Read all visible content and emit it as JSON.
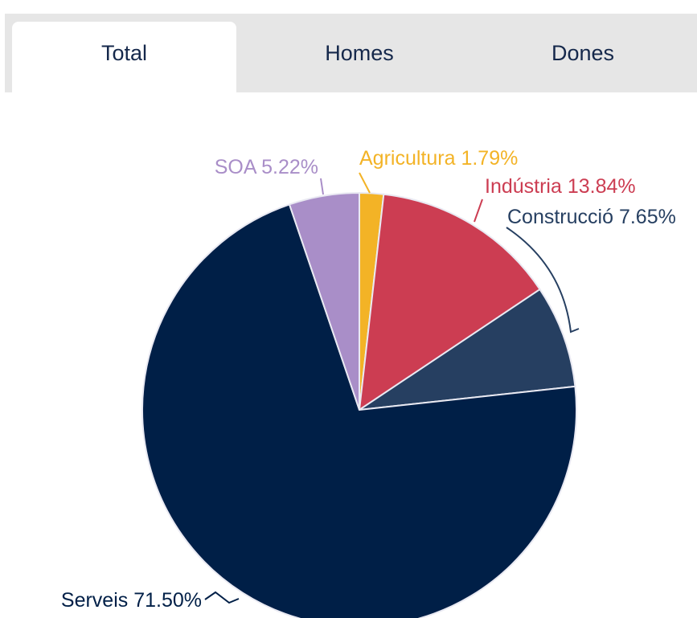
{
  "tabs": [
    {
      "label": "Total",
      "active": true
    },
    {
      "label": "Homes",
      "active": false
    },
    {
      "label": "Dones",
      "active": false
    }
  ],
  "chart_data": {
    "type": "pie",
    "slices": [
      {
        "name": "Agricultura",
        "value": 1.79,
        "display": "Agricultura 1.79%",
        "color": "#f3b326"
      },
      {
        "name": "Indústria",
        "value": 13.84,
        "display": "Indústria 13.84%",
        "color": "#cc3d52"
      },
      {
        "name": "Construcció",
        "value": 7.65,
        "display": "Construcció 7.65%",
        "color": "#263f61"
      },
      {
        "name": "Serveis",
        "value": 71.5,
        "display": "Serveis 71.50%",
        "color": "#001f47"
      },
      {
        "name": "SOA",
        "value": 5.22,
        "display": "SOA 5.22%",
        "color": "#a98ec8"
      }
    ],
    "value_unit": "%",
    "legend": "none"
  }
}
